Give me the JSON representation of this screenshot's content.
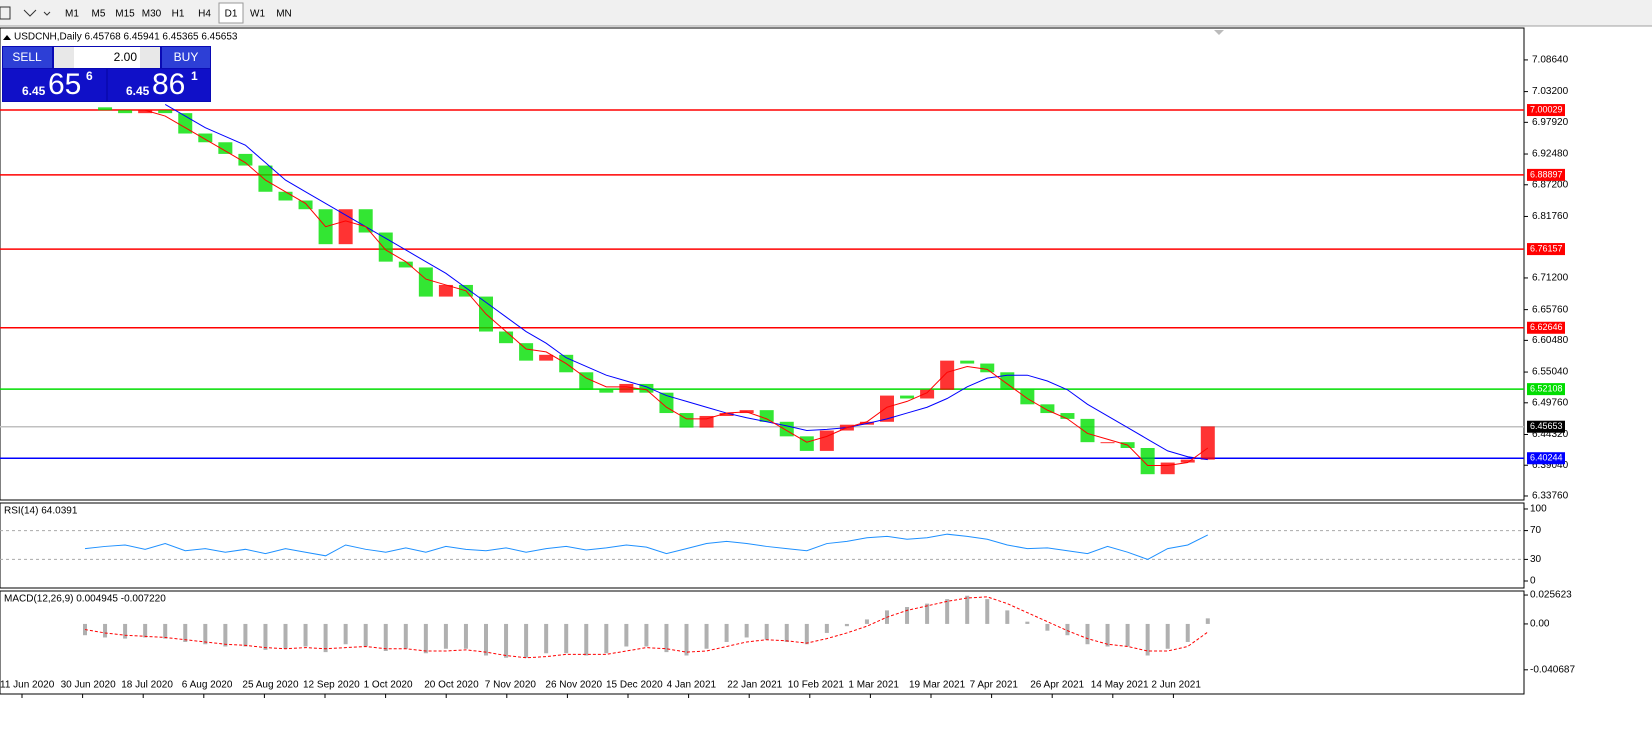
{
  "toolbar": {
    "timeframes": [
      "M1",
      "M5",
      "M15",
      "M30",
      "H1",
      "H4",
      "D1",
      "W1",
      "MN"
    ],
    "active": "D1"
  },
  "chart": {
    "header": "USDCNH,Daily  6.45768 6.45941 6.45365 6.45653",
    "ylim": [
      6.3307,
      7.1412
    ],
    "yticks": [
      {
        "value": 7.0864,
        "label": "7.08640"
      },
      {
        "value": 7.032,
        "label": "7.03200"
      },
      {
        "value": 6.9792,
        "label": "6.97920"
      },
      {
        "value": 6.9248,
        "label": "6.92480"
      },
      {
        "value": 6.872,
        "label": "6.87200"
      },
      {
        "value": 6.8176,
        "label": "6.81760"
      },
      {
        "value": 6.712,
        "label": "6.71200"
      },
      {
        "value": 6.6576,
        "label": "6.65760"
      },
      {
        "value": 6.6048,
        "label": "6.60480"
      },
      {
        "value": 6.5504,
        "label": "6.55040"
      },
      {
        "value": 6.4976,
        "label": "6.49760"
      },
      {
        "value": 6.4432,
        "label": "6.44320"
      },
      {
        "value": 6.3904,
        "label": "6.39040"
      },
      {
        "value": 6.3376,
        "label": "6.33760"
      }
    ],
    "price_lines": [
      {
        "value": 7.00029,
        "color": "#ff0000"
      },
      {
        "value": 6.88897,
        "color": "#ff0000"
      },
      {
        "value": 6.76157,
        "color": "#ff0000"
      },
      {
        "value": 6.62646,
        "color": "#ff0000"
      },
      {
        "value": 6.52108,
        "color": "#00dd00"
      },
      {
        "value": 6.45653,
        "color": "#c0c0c0"
      },
      {
        "value": 6.40244,
        "color": "#0000ff"
      }
    ],
    "closes": [
      7.005,
      7.0,
      6.995,
      7.0,
      6.995,
      6.96,
      6.945,
      6.925,
      6.905,
      6.86,
      6.845,
      6.83,
      6.77,
      6.83,
      6.79,
      6.74,
      6.73,
      6.68,
      6.7,
      6.68,
      6.62,
      6.6,
      6.57,
      6.58,
      6.55,
      6.52,
      6.515,
      6.53,
      6.515,
      6.48,
      6.455,
      6.475,
      6.48,
      6.485,
      6.465,
      6.44,
      6.415,
      6.45,
      6.46,
      6.465,
      6.51,
      6.505,
      6.52,
      6.57,
      6.565,
      6.55,
      6.52,
      6.495,
      6.48,
      6.47,
      6.43,
      6.43,
      6.42,
      6.375,
      6.395,
      6.4,
      6.457
    ],
    "ma_fast": {
      "color": "#ff0000",
      "values": [
        null,
        null,
        null,
        7.0,
        6.99,
        6.97,
        6.95,
        6.93,
        6.91,
        6.88,
        6.86,
        6.84,
        6.8,
        6.81,
        6.8,
        6.76,
        6.74,
        6.71,
        6.7,
        6.69,
        6.65,
        6.62,
        6.59,
        6.585,
        6.565,
        6.54,
        6.525,
        6.525,
        6.52,
        6.49,
        6.47,
        6.47,
        6.48,
        6.482,
        6.47,
        6.45,
        6.43,
        6.44,
        6.455,
        6.465,
        6.49,
        6.5,
        6.515,
        6.55,
        6.56,
        6.555,
        6.53,
        6.505,
        6.485,
        6.47,
        6.445,
        6.435,
        6.425,
        6.39,
        6.39,
        6.395,
        6.42
      ]
    },
    "ma_slow": {
      "color": "#0000ff",
      "values": [
        null,
        null,
        null,
        null,
        7.01,
        6.99,
        6.97,
        6.955,
        6.94,
        6.91,
        6.88,
        6.86,
        6.84,
        6.82,
        6.8,
        6.78,
        6.76,
        6.74,
        6.72,
        6.695,
        6.67,
        6.645,
        6.62,
        6.6,
        6.575,
        6.56,
        6.545,
        6.535,
        6.525,
        6.51,
        6.5,
        6.49,
        6.48,
        6.472,
        6.465,
        6.458,
        6.45,
        6.452,
        6.455,
        6.462,
        6.47,
        6.48,
        6.49,
        6.505,
        6.525,
        6.54,
        6.545,
        6.545,
        6.535,
        6.52,
        6.495,
        6.475,
        6.455,
        6.435,
        6.415,
        6.405,
        6.4
      ]
    },
    "x_labels": [
      "11 Jun 2020",
      "30 Jun 2020",
      "18 Jul 2020",
      "6 Aug 2020",
      "25 Aug 2020",
      "12 Sep 2020",
      "1 Oct 2020",
      "20 Oct 2020",
      "7 Nov 2020",
      "26 Nov 2020",
      "15 Dec 2020",
      "4 Jan 2021",
      "22 Jan 2021",
      "10 Feb 2021",
      "1 Mar 2021",
      "19 Mar 2021",
      "7 Apr 2021",
      "26 Apr 2021",
      "14 May 2021",
      "2 Jun 2021"
    ]
  },
  "trade_panel": {
    "sell": "SELL",
    "buy": "BUY",
    "lots": "2.00",
    "bid_big": "6.45",
    "bid_pips": "65",
    "bid_frac": "6",
    "ask_big": "6.45",
    "ask_pips": "86",
    "ask_frac": "1"
  },
  "rsi": {
    "header": "RSI(14) 64.0391",
    "ylim": [
      -9.7,
      108.3
    ],
    "yticks": [
      100,
      70,
      30,
      0
    ],
    "dashed_levels": [
      70,
      30
    ],
    "color": "#1e90ff",
    "values": [
      45,
      48,
      50,
      44,
      52,
      42,
      45,
      40,
      44,
      38,
      45,
      40,
      35,
      50,
      44,
      40,
      46,
      40,
      48,
      44,
      42,
      46,
      40,
      45,
      48,
      43,
      46,
      50,
      47,
      38,
      45,
      52,
      55,
      52,
      48,
      45,
      42,
      52,
      55,
      60,
      62,
      58,
      60,
      65,
      62,
      58,
      50,
      45,
      46,
      42,
      38,
      48,
      40,
      30,
      45,
      50,
      64
    ]
  },
  "macd": {
    "header": "MACD(12,26,9) 0.004945 -0.007220",
    "ylim": [
      -0.06214,
      0.0292
    ],
    "yticks": [
      0.025623,
      {
        "value": 0,
        "label": "0.00"
      },
      -0.040687
    ],
    "hist_color": "#b0b0b0",
    "signal_color": "#ff0000",
    "hist": [
      -0.01,
      -0.012,
      -0.013,
      -0.012,
      -0.013,
      -0.016,
      -0.018,
      -0.02,
      -0.02,
      -0.023,
      -0.022,
      -0.02,
      -0.025,
      -0.018,
      -0.02,
      -0.024,
      -0.022,
      -0.026,
      -0.022,
      -0.022,
      -0.028,
      -0.03,
      -0.03,
      -0.026,
      -0.026,
      -0.028,
      -0.026,
      -0.02,
      -0.02,
      -0.025,
      -0.028,
      -0.022,
      -0.016,
      -0.012,
      -0.014,
      -0.016,
      -0.018,
      -0.008,
      -0.002,
      0.004,
      0.012,
      0.015,
      0.018,
      0.022,
      0.025,
      0.022,
      0.012,
      0.002,
      -0.006,
      -0.01,
      -0.018,
      -0.02,
      -0.02,
      -0.028,
      -0.022,
      -0.016,
      0.004945
    ],
    "signal": [
      -0.005,
      -0.008,
      -0.01,
      -0.011,
      -0.012,
      -0.014,
      -0.016,
      -0.018,
      -0.019,
      -0.021,
      -0.022,
      -0.021,
      -0.022,
      -0.021,
      -0.02,
      -0.022,
      -0.022,
      -0.024,
      -0.024,
      -0.023,
      -0.025,
      -0.028,
      -0.03,
      -0.029,
      -0.027,
      -0.027,
      -0.027,
      -0.024,
      -0.021,
      -0.022,
      -0.025,
      -0.024,
      -0.02,
      -0.016,
      -0.014,
      -0.015,
      -0.017,
      -0.013,
      -0.008,
      -0.002,
      0.006,
      0.012,
      0.016,
      0.02,
      0.023,
      0.024,
      0.018,
      0.01,
      0.002,
      -0.006,
      -0.013,
      -0.018,
      -0.02,
      -0.024,
      -0.024,
      -0.02,
      -0.00722
    ]
  }
}
